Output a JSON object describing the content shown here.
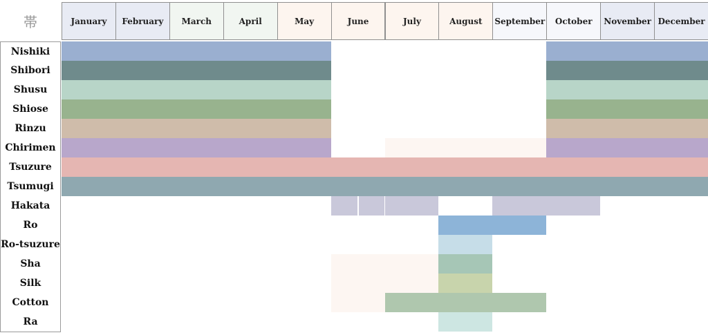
{
  "corner_label": "帯",
  "chart_data": {
    "type": "timeline",
    "months": [
      {
        "label": "January",
        "color": "#e8ebf4"
      },
      {
        "label": "February",
        "color": "#e8ebf4"
      },
      {
        "label": "March",
        "color": "#f1f6f1"
      },
      {
        "label": "April",
        "color": "#f1f6f1"
      },
      {
        "label": "May",
        "color": "#fdf5ef"
      },
      {
        "label": "June",
        "color": "#fdf5ef"
      },
      {
        "label": "July",
        "color": "#fdf5ef"
      },
      {
        "label": "August",
        "color": "#fdf5ef"
      },
      {
        "label": "September",
        "color": "#f6f7fb"
      },
      {
        "label": "October",
        "color": "#f6f7fb"
      },
      {
        "label": "November",
        "color": "#e8ebf4"
      },
      {
        "label": "December",
        "color": "#e8ebf4"
      }
    ],
    "rows": [
      {
        "name": "Nishiki",
        "segments": [
          {
            "start": 1,
            "end": 5.0,
            "color": "#9aafd0"
          },
          {
            "start": 10.0,
            "end": 12,
            "color": "#9aafd0"
          }
        ]
      },
      {
        "name": "Shibori",
        "segments": [
          {
            "start": 1,
            "end": 5.0,
            "color": "#6f8b8c"
          },
          {
            "start": 10.0,
            "end": 12,
            "color": "#6f8b8c"
          }
        ]
      },
      {
        "name": "Shusu",
        "segments": [
          {
            "start": 1,
            "end": 5.0,
            "color": "#b8d5c8"
          },
          {
            "start": 10.0,
            "end": 12,
            "color": "#b8d5c8"
          }
        ]
      },
      {
        "name": "Shiose",
        "segments": [
          {
            "start": 1,
            "end": 5.0,
            "color": "#98b38e"
          },
          {
            "start": 10.0,
            "end": 12,
            "color": "#98b38e"
          }
        ]
      },
      {
        "name": "Rinzu",
        "segments": [
          {
            "start": 1,
            "end": 5.0,
            "color": "#cfbcaa"
          },
          {
            "start": 10.0,
            "end": 12,
            "color": "#cfbcaa"
          }
        ]
      },
      {
        "name": "Chirimen",
        "segments": [
          {
            "start": 1,
            "end": 5.0,
            "color": "#b8a7cb"
          },
          {
            "start": 6.5,
            "end": 9.5,
            "color": "#fdf6f2"
          },
          {
            "start": 10.0,
            "end": 12,
            "color": "#b8a7cb"
          }
        ]
      },
      {
        "name": "Tsuzure",
        "segments": [
          {
            "start": 1,
            "end": 12,
            "color": "#e5b6b2"
          }
        ]
      },
      {
        "name": "Tsumugi",
        "segments": [
          {
            "start": 1,
            "end": 12,
            "color": "#8fa8b0"
          }
        ]
      },
      {
        "name": "Hakata",
        "segments": [
          {
            "start": 6,
            "end": 6.5,
            "color": "#c9c8da"
          },
          {
            "start": 6.5,
            "end": 7,
            "color": "#c9c8da"
          },
          {
            "start": 9,
            "end": 10,
            "color": "#c9c8da"
          }
        ]
      },
      {
        "name": "Ro",
        "segments": [
          {
            "start": 7.5,
            "end": 9,
            "color": "#8db4d8"
          }
        ]
      },
      {
        "name": "Ro-tsuzure",
        "segments": [
          {
            "start": 7.5,
            "end": 8.5,
            "color": "#c6dde8"
          }
        ]
      },
      {
        "name": "Sha",
        "segments": [
          {
            "start": 6,
            "end": 7,
            "color": "#fdf6f2"
          },
          {
            "start": 7.5,
            "end": 8.5,
            "color": "#a6c6b6"
          }
        ]
      },
      {
        "name": "Silk",
        "segments": [
          {
            "start": 6,
            "end": 7,
            "color": "#fdf6f2"
          },
          {
            "start": 7.5,
            "end": 8.5,
            "color": "#c8d4ac"
          }
        ]
      },
      {
        "name": "Cotton",
        "segments": [
          {
            "start": 6,
            "end": 7,
            "color": "#fdf6f2"
          },
          {
            "start": 7,
            "end": 9.5,
            "color": "#afc7ae"
          }
        ]
      },
      {
        "name": "Ra",
        "segments": [
          {
            "start": 7.5,
            "end": 8.5,
            "color": "#cde6e2"
          }
        ]
      }
    ]
  }
}
